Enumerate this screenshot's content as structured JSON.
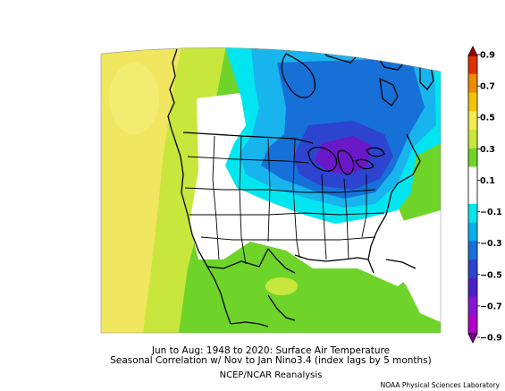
{
  "figure": {
    "title_line1": "Jun to Aug: 1948 to 2020: Surface Air Temperature",
    "title_line2": "Seasonal Correlation w/ Nov to Jan Nino3.4 (index lags by 5 months)",
    "source": "NCEP/NCAR Reanalysis",
    "credit": "NOAA Physical Sciences Laboratory"
  },
  "colorbar": {
    "labels": [
      "0.9",
      "0.7",
      "0.5",
      "0.3",
      "0.1",
      "−0.1",
      "−0.3",
      "−0.5",
      "−0.7",
      "−0.9"
    ],
    "colors": [
      "#a80000",
      "#e03000",
      "#f08a00",
      "#f5c400",
      "#f4ec50",
      "#c8e63c",
      "#6ed42a",
      "#ffffff",
      "#ffffff",
      "#00e6f0",
      "#00b0f0",
      "#1670d8",
      "#2c44d0",
      "#4a20c8",
      "#8a14d4",
      "#b000c8",
      "#7a0090"
    ]
  },
  "map_colors": {
    "ocean_yellow": "#f0e660",
    "pale_yellow": "#e6f050",
    "light_green": "#a8e040",
    "green": "#6ed42a",
    "white": "#ffffff",
    "cyan": "#00e6f0",
    "light_blue": "#18b4ee",
    "blue": "#1670d8",
    "dark_blue": "#2c44d0",
    "purple": "#6a18c8"
  }
}
